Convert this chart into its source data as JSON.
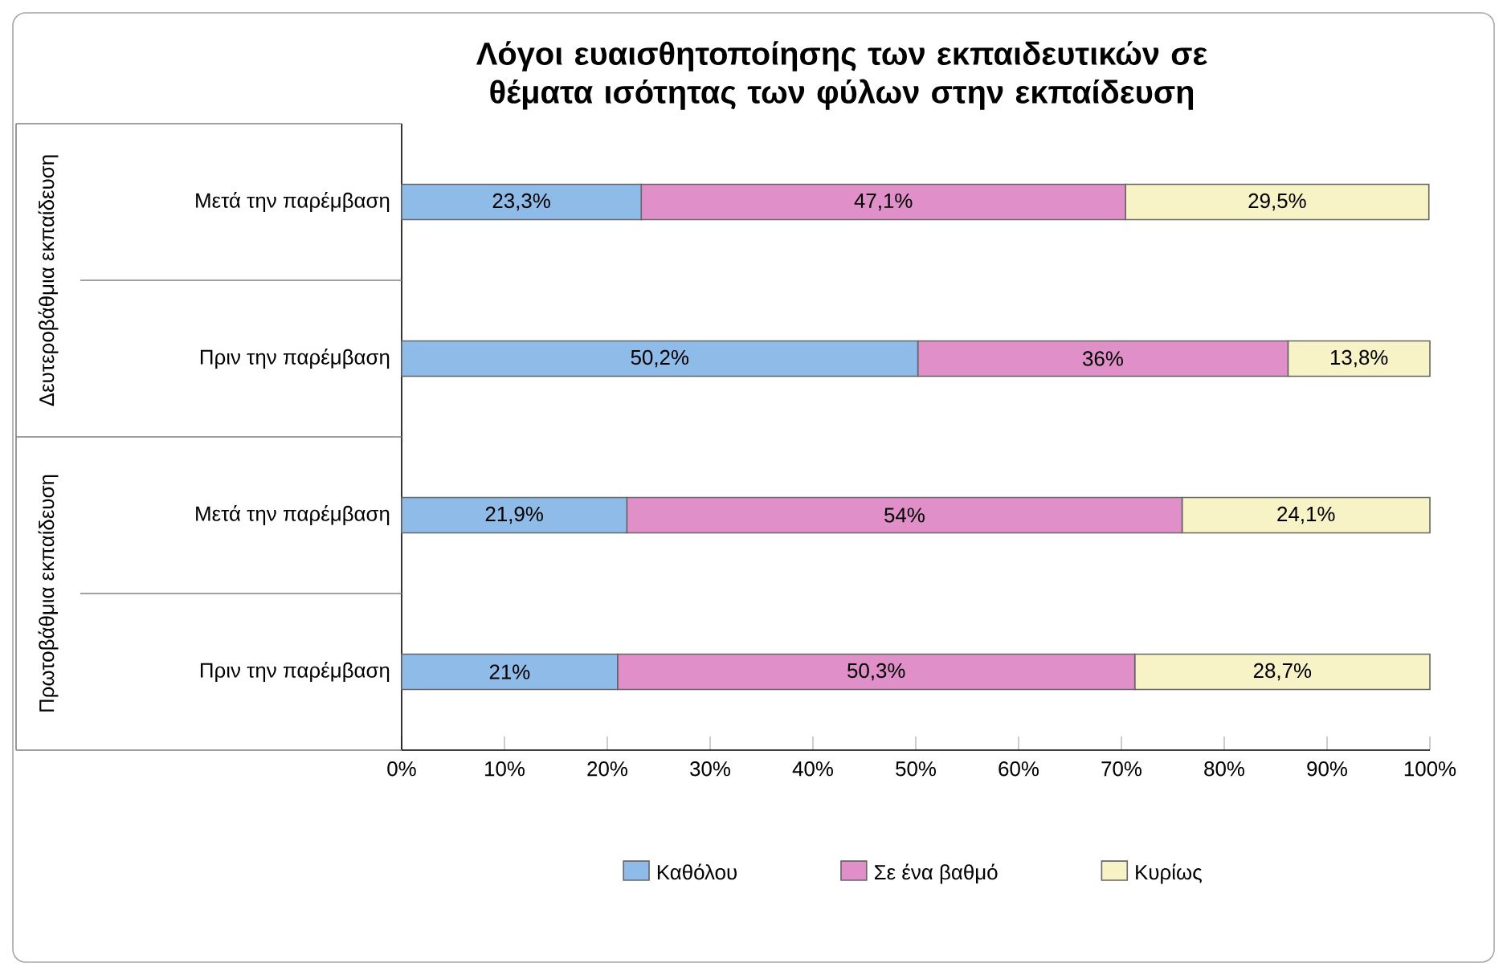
{
  "chart_data": {
    "type": "bar",
    "orientation": "horizontal",
    "stacked": true,
    "title": "Λόγοι ευαισθητοποίησης των εκπαιδευτικών σε θέματα ισότητας των φύλων στην εκπαίδευση",
    "categories": [
      "Μετά την παρέμβαση",
      "Πριν την παρέμβαση",
      "Μετά την παρέμβαση",
      "Πριν την παρέμβαση"
    ],
    "annotations": [
      "Δευτεροβάθμια εκπαίδευση",
      "Πρωτοβάθμια εκπαίδευση"
    ],
    "series": [
      {
        "name": "Καθόλου",
        "color": "#8fbbe8",
        "values": [
          23.3,
          50.2,
          21.9,
          21
        ],
        "value_labels": [
          "23,3%",
          "50,2%",
          "21,9%",
          "21%"
        ]
      },
      {
        "name": "Σε ένα βαθμό",
        "color": "#e08fc8",
        "values": [
          47.1,
          36,
          54,
          50.3
        ],
        "value_labels": [
          "47,1%",
          "36%",
          "54%",
          "50,3%"
        ]
      },
      {
        "name": "Κυρίως",
        "color": "#f7f3c6",
        "values": [
          29.5,
          13.8,
          24.1,
          28.7
        ],
        "value_labels": [
          "29,5%",
          "13,8%",
          "24,1%",
          "28,7%"
        ]
      }
    ],
    "xlim": [
      0,
      100
    ],
    "xticks": [
      {
        "value": 0,
        "label": "0%"
      },
      {
        "value": 10,
        "label": "10%"
      },
      {
        "value": 20,
        "label": "20%"
      },
      {
        "value": 30,
        "label": "30%"
      },
      {
        "value": 40,
        "label": "40%"
      },
      {
        "value": 50,
        "label": "50%"
      },
      {
        "value": 60,
        "label": "60%"
      },
      {
        "value": 70,
        "label": "70%"
      },
      {
        "value": 80,
        "label": "80%"
      },
      {
        "value": 90,
        "label": "90%"
      },
      {
        "value": 100,
        "label": "100%"
      }
    ],
    "legend": "bottom"
  }
}
